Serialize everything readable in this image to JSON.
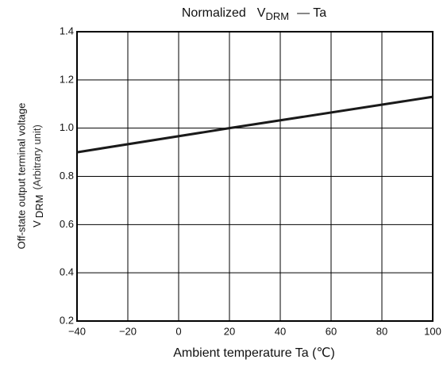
{
  "chart_data": {
    "type": "line",
    "title": {
      "prefix": "Normalized",
      "symbol": "V",
      "subscript": "DRM",
      "suffix": "— Ta"
    },
    "ylabel": {
      "line1": "Off-state output terminal voltage",
      "symbol": "V",
      "subscript": "DRM",
      "unit": "(Arbitrary unit)"
    },
    "xlabel": "Ambient temperature Ta (℃)",
    "x": [
      -40,
      20,
      100
    ],
    "series": [
      {
        "name": "VDRM",
        "color": "#1a1a1a",
        "values": [
          0.9,
          1.0,
          1.13
        ]
      }
    ],
    "xlim": [
      -40,
      100
    ],
    "xticks": [
      {
        "value": -40,
        "label": "−40"
      },
      {
        "value": -20,
        "label": "−20"
      },
      0,
      20,
      40,
      60,
      80,
      100
    ],
    "ylim": [
      0.2,
      1.4
    ],
    "yticks": [
      0.2,
      0.4,
      0.6,
      0.8,
      {
        "value": 1.0,
        "label": "1.0"
      },
      1.2,
      1.4
    ],
    "grid": true
  }
}
